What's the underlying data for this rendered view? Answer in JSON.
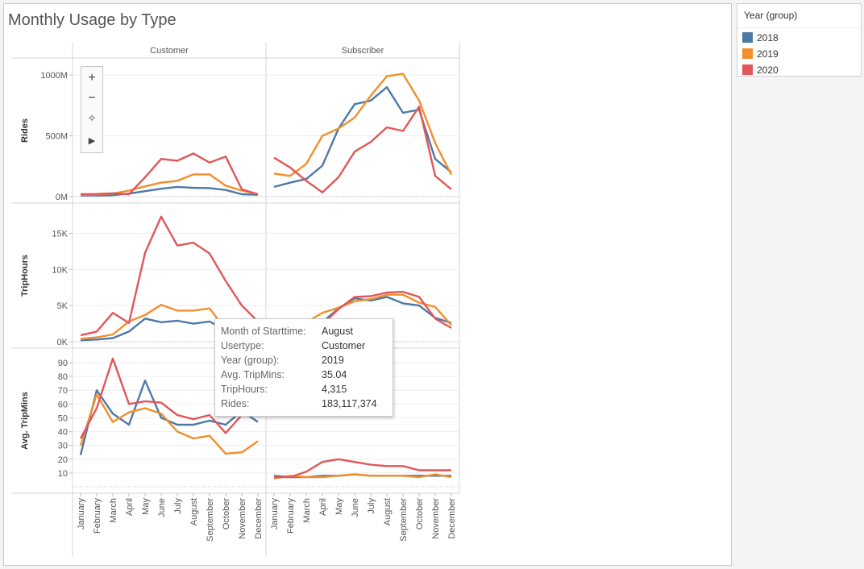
{
  "title": "Monthly Usage by Type",
  "legend": {
    "title": "Year (group)",
    "items": [
      {
        "label": "2018",
        "color": "#4e79a7"
      },
      {
        "label": "2019",
        "color": "#f28e2b"
      },
      {
        "label": "2020",
        "color": "#e15759"
      }
    ]
  },
  "toolbar": {
    "zoom_in": "+",
    "zoom_out": "−",
    "pin": "✧",
    "play": "▶"
  },
  "tooltip": {
    "rows": [
      {
        "key": "Month of Starttime:",
        "value": "August"
      },
      {
        "key": "Usertype:",
        "value": "Customer"
      },
      {
        "key": "Year (group):",
        "value": "2019"
      },
      {
        "key": "Avg. TripMins:",
        "value": "35.04"
      },
      {
        "key": "TripHours:",
        "value": "4,315"
      },
      {
        "key": "Rides:",
        "value": "183,117,374"
      }
    ]
  },
  "chart_data": {
    "type": "line",
    "title": "Monthly Usage by Type",
    "columns": [
      "Customer",
      "Subscriber"
    ],
    "categories": [
      "January",
      "February",
      "March",
      "April",
      "May",
      "June",
      "July",
      "August",
      "September",
      "October",
      "November",
      "December"
    ],
    "rows": [
      {
        "label": "Rides",
        "ylim": [
          0,
          1100
        ],
        "ticks": [
          {
            "v": 0,
            "label": "0M"
          },
          {
            "v": 500,
            "label": "500M"
          },
          {
            "v": 1000,
            "label": "1000M"
          }
        ],
        "panels": [
          {
            "column": "Customer",
            "series": [
              {
                "name": "2018",
                "values": [
                  10,
                  10,
                  12,
                  25,
                  45,
                  65,
                  80,
                  72,
                  70,
                  55,
                  20,
                  15
                ]
              },
              {
                "name": "2019",
                "values": [
                  15,
                  18,
                  25,
                  50,
                  85,
                  115,
                  130,
                  183,
                  183,
                  90,
                  50,
                  20
                ]
              },
              {
                "name": "2020",
                "values": [
                  20,
                  22,
                  28,
                  20,
                  160,
                  310,
                  295,
                  355,
                  280,
                  330,
                  60,
                  20
                ]
              }
            ]
          },
          {
            "column": "Subscriber",
            "series": [
              {
                "name": "2018",
                "values": [
                  80,
                  115,
                  145,
                  255,
                  560,
                  760,
                  790,
                  900,
                  690,
                  715,
                  310,
                  200
                ]
              },
              {
                "name": "2019",
                "values": [
                  190,
                  170,
                  270,
                  500,
                  560,
                  650,
                  830,
                  990,
                  1010,
                  790,
                  440,
                  180
                ]
              },
              {
                "name": "2020",
                "values": [
                  320,
                  240,
                  130,
                  35,
                  160,
                  370,
                  450,
                  570,
                  540,
                  740,
                  170,
                  60
                ]
              }
            ]
          }
        ]
      },
      {
        "label": "TripHours",
        "ylim": [
          0,
          18500
        ],
        "ticks": [
          {
            "v": 0,
            "label": "0K"
          },
          {
            "v": 5000,
            "label": "5K"
          },
          {
            "v": 10000,
            "label": "10K"
          },
          {
            "v": 15000,
            "label": "15K"
          }
        ],
        "panels": [
          {
            "column": "Customer",
            "series": [
              {
                "name": "2018",
                "values": [
                  200,
                  300,
                  500,
                  1400,
                  3200,
                  2700,
                  2900,
                  2500,
                  2800,
                  1600,
                  600,
                  300
                ]
              },
              {
                "name": "2019",
                "values": [
                  400,
                  600,
                  1000,
                  2800,
                  3700,
                  5100,
                  4300,
                  4315,
                  4600,
                  1700,
                  700,
                  300
                ]
              },
              {
                "name": "2020",
                "values": [
                  900,
                  1400,
                  4000,
                  2600,
                  12300,
                  17300,
                  13300,
                  13700,
                  12200,
                  8400,
                  5000,
                  2800
                ]
              }
            ]
          },
          {
            "column": "Subscriber",
            "series": [
              {
                "name": "2018",
                "values": [
                  900,
                  1000,
                  1400,
                  2700,
                  4600,
                  6000,
                  5700,
                  6200,
                  5300,
                  5000,
                  3300,
                  2600
                ]
              },
              {
                "name": "2019",
                "values": [
                  1000,
                  2000,
                  2700,
                  4000,
                  4700,
                  5600,
                  5900,
                  6500,
                  6500,
                  5400,
                  4800,
                  2300
                ]
              },
              {
                "name": "2020",
                "values": [
                  1600,
                  1200,
                  1800,
                  2400,
                  4500,
                  6200,
                  6300,
                  6800,
                  6900,
                  6200,
                  3200,
                  1900
                ]
              }
            ]
          }
        ]
      },
      {
        "label": "Avg. TripMins",
        "ylim": [
          0,
          97
        ],
        "ticks": [
          {
            "v": 10,
            "label": "10"
          },
          {
            "v": 20,
            "label": "20"
          },
          {
            "v": 30,
            "label": "30"
          },
          {
            "v": 40,
            "label": "40"
          },
          {
            "v": 50,
            "label": "50"
          },
          {
            "v": 60,
            "label": "60"
          },
          {
            "v": 70,
            "label": "70"
          },
          {
            "v": 80,
            "label": "80"
          },
          {
            "v": 90,
            "label": "90"
          }
        ],
        "panels": [
          {
            "column": "Customer",
            "series": [
              {
                "name": "2018",
                "values": [
                  23,
                  70,
                  53,
                  45,
                  77,
                  50,
                  45,
                  45,
                  48,
                  45,
                  55,
                  47
                ]
              },
              {
                "name": "2019",
                "values": [
                  30,
                  67,
                  47,
                  54,
                  57,
                  53,
                  40,
                  35.04,
                  37,
                  24,
                  25,
                  33
                ]
              },
              {
                "name": "2020",
                "values": [
                  35,
                  57,
                  93,
                  60,
                  62,
                  61,
                  52,
                  49,
                  52,
                  39,
                  52,
                  58
                ]
              }
            ]
          },
          {
            "column": "Subscriber",
            "series": [
              {
                "name": "2018",
                "values": [
                  8,
                  7,
                  7,
                  8,
                  8,
                  9,
                  8,
                  8,
                  8,
                  8,
                  8,
                  8
                ]
              },
              {
                "name": "2019",
                "values": [
                  6,
                  8,
                  7,
                  7,
                  8,
                  9,
                  8,
                  8,
                  8,
                  7,
                  9,
                  7
                ]
              },
              {
                "name": "2020",
                "values": [
                  7,
                  7,
                  11,
                  18,
                  20,
                  18,
                  16,
                  15,
                  15,
                  12,
                  12,
                  12
                ]
              }
            ]
          }
        ]
      }
    ]
  }
}
